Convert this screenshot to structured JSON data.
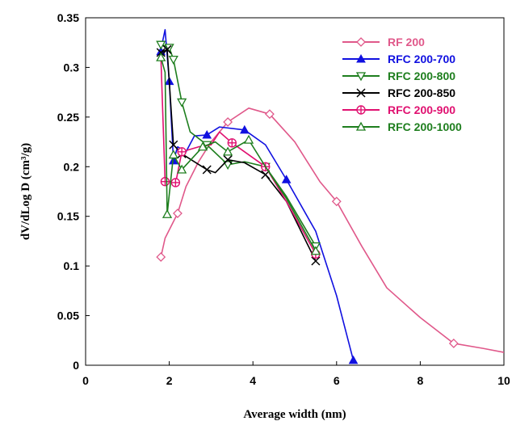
{
  "chart_data": {
    "type": "line",
    "xlabel": "Average width (nm)",
    "ylabel": "dV/dLog D (cm³/g)",
    "xlim": [
      0,
      10
    ],
    "ylim": [
      0,
      0.35
    ],
    "x_ticks": [
      "0",
      "2",
      "4",
      "6",
      "8",
      "10"
    ],
    "y_ticks": [
      "0",
      "0.05",
      "0.1",
      "0.15",
      "0.2",
      "0.25",
      "0.3",
      "0.35"
    ],
    "grid": false,
    "legend_position": "top-right",
    "series": [
      {
        "name": "RF 200",
        "color": "#e0588a",
        "marker": "diamond",
        "points": [
          [
            1.8,
            0.109
          ],
          [
            1.9,
            0.128
          ],
          [
            2.2,
            0.153
          ],
          [
            2.4,
            0.18
          ],
          [
            2.7,
            0.205
          ],
          [
            3.0,
            0.225
          ],
          [
            3.4,
            0.245
          ],
          [
            3.9,
            0.259
          ],
          [
            4.4,
            0.253
          ],
          [
            5.0,
            0.225
          ],
          [
            5.6,
            0.185
          ],
          [
            6.0,
            0.165
          ],
          [
            6.6,
            0.12
          ],
          [
            7.2,
            0.078
          ],
          [
            8.0,
            0.048
          ],
          [
            8.8,
            0.022
          ],
          [
            9.5,
            0.017
          ],
          [
            10.0,
            0.013
          ]
        ],
        "marker_points": [
          [
            1.8,
            0.109
          ],
          [
            2.2,
            0.153
          ],
          [
            3.4,
            0.245
          ],
          [
            4.4,
            0.253
          ],
          [
            6.0,
            0.165
          ],
          [
            8.8,
            0.022
          ]
        ]
      },
      {
        "name": "RFC 200-700",
        "color": "#1010e0",
        "marker": "triangle-up",
        "points": [
          [
            1.8,
            0.318
          ],
          [
            1.9,
            0.338
          ],
          [
            2.0,
            0.286
          ],
          [
            2.1,
            0.206
          ],
          [
            2.2,
            0.22
          ],
          [
            2.4,
            0.215
          ],
          [
            2.6,
            0.231
          ],
          [
            2.9,
            0.232
          ],
          [
            3.2,
            0.24
          ],
          [
            3.8,
            0.237
          ],
          [
            4.3,
            0.222
          ],
          [
            4.8,
            0.187
          ],
          [
            5.5,
            0.135
          ],
          [
            6.0,
            0.07
          ],
          [
            6.4,
            0.005
          ]
        ],
        "marker_points": [
          [
            1.8,
            0.316
          ],
          [
            2.0,
            0.286
          ],
          [
            2.1,
            0.206
          ],
          [
            2.9,
            0.232
          ],
          [
            3.8,
            0.237
          ],
          [
            4.8,
            0.187
          ],
          [
            6.4,
            0.005
          ]
        ]
      },
      {
        "name": "RFC 200-800",
        "color": "#1e7e1e",
        "marker": "triangle-down",
        "points": [
          [
            1.8,
            0.323
          ],
          [
            2.0,
            0.32
          ],
          [
            2.1,
            0.308
          ],
          [
            2.3,
            0.265
          ],
          [
            2.5,
            0.235
          ],
          [
            2.9,
            0.222
          ],
          [
            3.4,
            0.202
          ],
          [
            3.8,
            0.205
          ],
          [
            4.3,
            0.2
          ],
          [
            4.8,
            0.17
          ],
          [
            5.5,
            0.12
          ]
        ],
        "marker_points": [
          [
            1.8,
            0.323
          ],
          [
            2.0,
            0.32
          ],
          [
            2.1,
            0.308
          ],
          [
            2.3,
            0.265
          ],
          [
            2.9,
            0.222
          ],
          [
            3.4,
            0.202
          ],
          [
            4.3,
            0.2
          ],
          [
            5.5,
            0.12
          ]
        ]
      },
      {
        "name": "RFC 200-850",
        "color": "#000000",
        "marker": "x-cross",
        "points": [
          [
            1.8,
            0.315
          ],
          [
            1.95,
            0.318
          ],
          [
            2.1,
            0.222
          ],
          [
            2.3,
            0.213
          ],
          [
            2.6,
            0.205
          ],
          [
            2.9,
            0.197
          ],
          [
            3.1,
            0.194
          ],
          [
            3.4,
            0.207
          ],
          [
            3.8,
            0.204
          ],
          [
            4.3,
            0.192
          ],
          [
            4.8,
            0.165
          ],
          [
            5.5,
            0.105
          ]
        ],
        "marker_points": [
          [
            1.8,
            0.315
          ],
          [
            1.95,
            0.318
          ],
          [
            2.1,
            0.222
          ],
          [
            2.3,
            0.213
          ],
          [
            2.9,
            0.197
          ],
          [
            3.4,
            0.207
          ],
          [
            4.3,
            0.192
          ],
          [
            5.5,
            0.105
          ]
        ]
      },
      {
        "name": "RFC 200-900",
        "color": "#e01070",
        "marker": "circle-plus",
        "points": [
          [
            1.8,
            0.31
          ],
          [
            1.9,
            0.185
          ],
          [
            2.05,
            0.185
          ],
          [
            2.15,
            0.183
          ],
          [
            2.3,
            0.215
          ],
          [
            2.7,
            0.22
          ],
          [
            3.0,
            0.222
          ],
          [
            3.2,
            0.235
          ],
          [
            3.5,
            0.224
          ],
          [
            4.3,
            0.2
          ],
          [
            4.8,
            0.165
          ],
          [
            5.5,
            0.112
          ]
        ],
        "marker_points": [
          [
            1.9,
            0.185
          ],
          [
            2.15,
            0.184
          ],
          [
            2.3,
            0.215
          ],
          [
            3.5,
            0.224
          ],
          [
            4.3,
            0.2
          ],
          [
            5.5,
            0.112
          ]
        ]
      },
      {
        "name": "RFC 200-1000",
        "color": "#1e7e1e",
        "marker": "triangle-up-open",
        "points": [
          [
            1.8,
            0.31
          ],
          [
            1.9,
            0.295
          ],
          [
            1.95,
            0.152
          ],
          [
            2.1,
            0.212
          ],
          [
            2.3,
            0.197
          ],
          [
            2.8,
            0.22
          ],
          [
            3.1,
            0.225
          ],
          [
            3.4,
            0.215
          ],
          [
            3.9,
            0.227
          ],
          [
            4.3,
            0.2
          ],
          [
            4.8,
            0.168
          ],
          [
            5.5,
            0.115
          ]
        ],
        "marker_points": [
          [
            1.8,
            0.31
          ],
          [
            1.95,
            0.152
          ],
          [
            2.1,
            0.212
          ],
          [
            2.3,
            0.197
          ],
          [
            2.8,
            0.22
          ],
          [
            3.4,
            0.215
          ],
          [
            3.9,
            0.227
          ],
          [
            5.5,
            0.115
          ]
        ]
      }
    ]
  }
}
